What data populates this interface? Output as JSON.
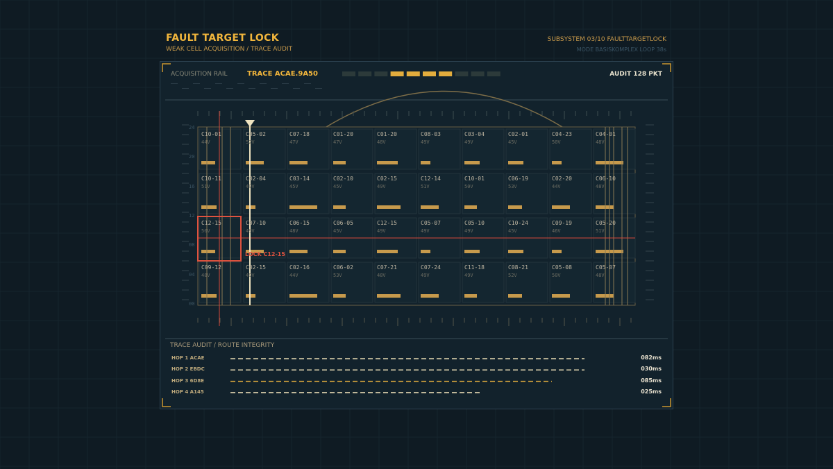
{
  "header": {
    "title": "FAULT TARGET LOCK",
    "subtitle": "WEAK CELL ACQUISITION / TRACE AUDIT",
    "subsystem": "SUBSYSTEM 03/10  FAULTTARGETLOCK",
    "mode": "MODE BASISKOMPLEX  LOOP 38s"
  },
  "rail": {
    "label": "ACQUISITION RAIL",
    "trace": "TRACE ACAE.9A50",
    "audit": "AUDIT 128 PKT"
  },
  "grid": {
    "y_ticks": [
      "24",
      "20",
      "16",
      "12",
      "08",
      "04",
      "00"
    ],
    "rows": [
      {
        "cells": [
          {
            "id": "C10-01",
            "v": "44V"
          },
          {
            "id": "C05-02",
            "v": "52V"
          },
          {
            "id": "C07-18",
            "v": "47V"
          },
          {
            "id": "C01-20",
            "v": "47V"
          },
          {
            "id": "C01-20",
            "v": "48V"
          },
          {
            "id": "C08-03",
            "v": "49V"
          },
          {
            "id": "C03-04",
            "v": "49V"
          },
          {
            "id": "C02-01",
            "v": "45V"
          },
          {
            "id": "C04-23",
            "v": "50V"
          },
          {
            "id": "C04-01",
            "v": "48V"
          }
        ]
      },
      {
        "cells": [
          {
            "id": "C10-11",
            "v": "51V"
          },
          {
            "id": "C02-04",
            "v": "49V"
          },
          {
            "id": "C03-14",
            "v": "45V"
          },
          {
            "id": "C02-10",
            "v": "45V"
          },
          {
            "id": "C02-15",
            "v": "49V"
          },
          {
            "id": "C12-14",
            "v": "51V"
          },
          {
            "id": "C10-01",
            "v": "50V"
          },
          {
            "id": "C06-19",
            "v": "53V"
          },
          {
            "id": "C02-20",
            "v": "44V"
          },
          {
            "id": "C06-10",
            "v": "48V"
          }
        ]
      },
      {
        "cells": [
          {
            "id": "C12-15",
            "v": "50V"
          },
          {
            "id": "C07-10",
            "v": "49V"
          },
          {
            "id": "C06-15",
            "v": "48V"
          },
          {
            "id": "C06-05",
            "v": "45V"
          },
          {
            "id": "C12-15",
            "v": "49V"
          },
          {
            "id": "C05-07",
            "v": "49V"
          },
          {
            "id": "C05-10",
            "v": "49V"
          },
          {
            "id": "C10-24",
            "v": "45V"
          },
          {
            "id": "C09-19",
            "v": "46V"
          },
          {
            "id": "C05-20",
            "v": "51V"
          }
        ]
      },
      {
        "cells": [
          {
            "id": "C09-12",
            "v": "48V"
          },
          {
            "id": "C02-15",
            "v": "49V"
          },
          {
            "id": "C02-16",
            "v": "44V"
          },
          {
            "id": "C06-02",
            "v": "53V"
          },
          {
            "id": "C07-21",
            "v": "48V"
          },
          {
            "id": "C07-24",
            "v": "49V"
          },
          {
            "id": "C11-18",
            "v": "49V"
          },
          {
            "id": "C08-21",
            "v": "52V"
          },
          {
            "id": "C05-08",
            "v": "50V"
          },
          {
            "id": "C05-07",
            "v": "48V"
          }
        ]
      }
    ],
    "lock_label": "LOCK C12-15"
  },
  "audit": {
    "title": "TRACE AUDIT / ROUTE INTEGRITY",
    "hops": [
      {
        "name": "HOP 1 ACAE",
        "ms": "082ms"
      },
      {
        "name": "HOP 2 EBDC",
        "ms": "030ms"
      },
      {
        "name": "HOP 3 6D8E",
        "ms": "085ms"
      },
      {
        "name": "HOP 4 A145",
        "ms": "025ms"
      }
    ]
  }
}
